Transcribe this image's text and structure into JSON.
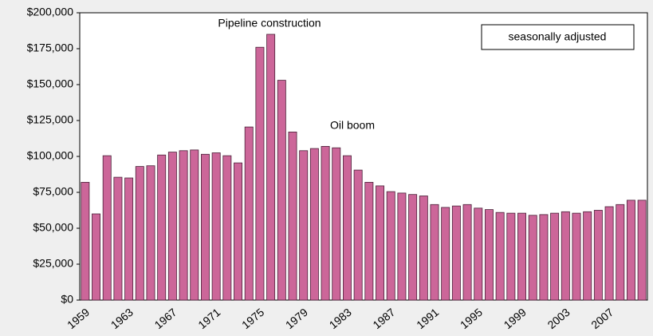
{
  "chart_data": {
    "type": "bar",
    "categories": [
      "1959",
      null,
      null,
      null,
      "1963",
      null,
      null,
      null,
      "1967",
      null,
      null,
      null,
      "1971",
      null,
      null,
      null,
      "1975",
      null,
      null,
      null,
      "1979",
      null,
      null,
      null,
      "1983",
      null,
      null,
      null,
      "1987",
      null,
      null,
      null,
      "1991",
      null,
      null,
      null,
      "1995",
      null,
      null,
      null,
      "1999",
      null,
      null,
      null,
      "2003",
      null,
      null,
      null,
      "2007",
      null,
      null,
      null
    ],
    "values": [
      82000,
      60000,
      100500,
      85500,
      85000,
      93000,
      93500,
      101000,
      103000,
      104000,
      104500,
      101500,
      102500,
      100500,
      95500,
      120500,
      176000,
      185000,
      153000,
      117000,
      104000,
      105500,
      107000,
      106000,
      100500,
      90500,
      82000,
      79500,
      75500,
      74500,
      73500,
      72500,
      66500,
      64500,
      65500,
      66500,
      64000,
      63000,
      61000,
      60500,
      60500,
      59000,
      59500,
      60500,
      61500,
      60500,
      61500,
      62500,
      65000,
      66500,
      69500,
      69500
    ],
    "color": "#cc6699",
    "ylim": [
      0,
      200000
    ],
    "yticks": [
      {
        "value": 0,
        "label": "$0"
      },
      {
        "value": 25000,
        "label": "$25,000"
      },
      {
        "value": 50000,
        "label": "$50,000"
      },
      {
        "value": 75000,
        "label": "$75,000"
      },
      {
        "value": 100000,
        "label": "$100,000"
      },
      {
        "value": 125000,
        "label": "$125,000"
      },
      {
        "value": 150000,
        "label": "$150,000"
      },
      {
        "value": 175000,
        "label": "$175,000"
      },
      {
        "value": 200000,
        "label": "$200,000"
      }
    ],
    "annotations": [
      "Pipeline construction",
      "Oil boom"
    ],
    "note": "seasonally adjusted",
    "grid": false
  }
}
